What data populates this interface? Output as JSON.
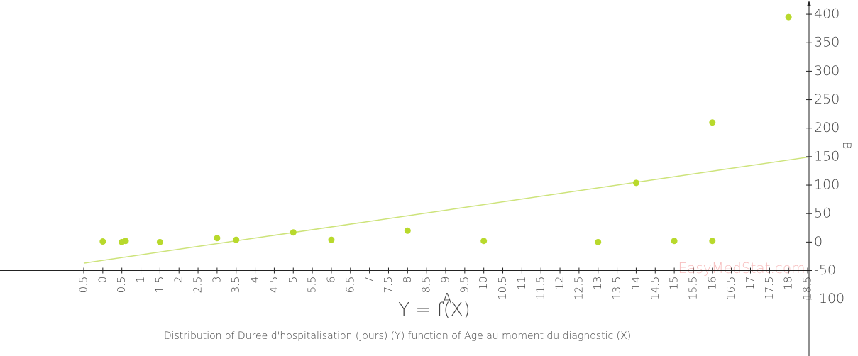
{
  "chart_data": {
    "type": "scatter",
    "title": "Y = f(X)",
    "subtitle": "Distribution of Duree d'hospitalisation (jours) (Y) function of Age au moment du diagnostic (X)",
    "xlabel": "A",
    "ylabel": "B",
    "watermark": "EasyMedStat.com",
    "x": [
      0,
      0.5,
      0.6,
      1.5,
      3,
      3.5,
      5,
      6,
      8,
      10,
      13,
      14,
      15,
      16,
      16,
      18
    ],
    "values": [
      1,
      0,
      2,
      0,
      7,
      4,
      17,
      4,
      20,
      2,
      0,
      104,
      2,
      210,
      2,
      395
    ],
    "color": "#b8d92c",
    "trend_x": [
      -0.5,
      18.5
    ],
    "trend_values": [
      -37,
      149
    ],
    "trend_color": "#cde37a",
    "xlim": [
      -0.5,
      18.5
    ],
    "xticks": [
      -0.5,
      0,
      0.5,
      1,
      1.5,
      2,
      2.5,
      3,
      3.5,
      4,
      4.5,
      5,
      5.5,
      6,
      6.5,
      7,
      7.5,
      8,
      8.5,
      9,
      9.5,
      10,
      10.5,
      11,
      11.5,
      12,
      12.5,
      13,
      13.5,
      14,
      14.5,
      15,
      15.5,
      16,
      16.5,
      17,
      17.5,
      18,
      18.5
    ],
    "ylim": [
      -200,
      425
    ],
    "yticks": [
      -100,
      -50,
      0,
      50,
      100,
      150,
      200,
      250,
      300,
      350,
      400
    ]
  }
}
